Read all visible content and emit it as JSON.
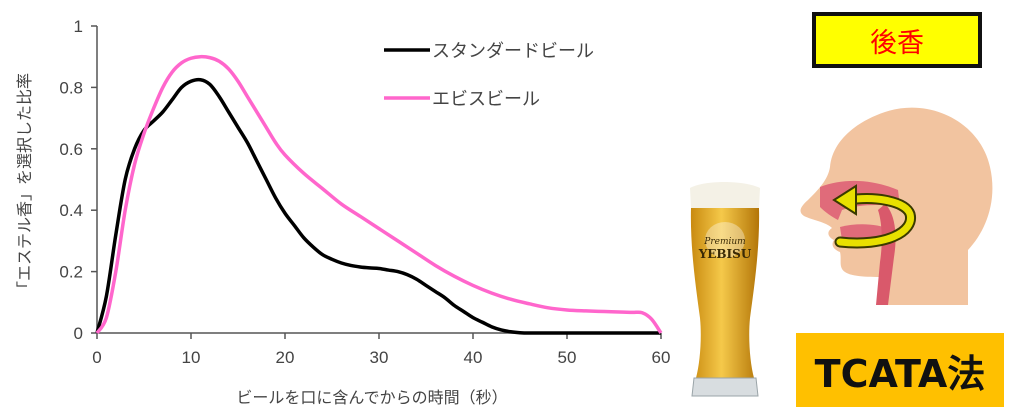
{
  "chart_data": {
    "type": "line",
    "xlabel": "ビールを口に含んでからの時間（秒）",
    "ylabel": "「エステル香」を選択した比率",
    "xlim": [
      0,
      60
    ],
    "ylim": [
      0,
      1
    ],
    "x_ticks": [
      "0",
      "10",
      "20",
      "30",
      "40",
      "50",
      "60"
    ],
    "y_ticks": [
      "0",
      "0.2",
      "0.4",
      "0.6",
      "0.8",
      "1"
    ],
    "legend_position": "top-right",
    "series": [
      {
        "name": "スタンダードビール",
        "color": "#000000",
        "x": [
          0,
          1,
          2,
          3,
          4,
          5,
          6,
          7,
          8,
          9,
          10,
          11,
          12,
          13,
          14,
          15,
          16,
          17,
          18,
          19,
          20,
          21,
          22,
          23,
          24,
          25,
          26,
          27,
          28,
          29,
          30,
          31,
          32,
          33,
          34,
          35,
          36,
          37,
          38,
          39,
          40,
          41,
          42,
          43,
          44,
          45,
          46,
          48,
          50,
          55,
          60
        ],
        "y": [
          0,
          0.12,
          0.32,
          0.5,
          0.6,
          0.66,
          0.69,
          0.72,
          0.76,
          0.8,
          0.82,
          0.825,
          0.81,
          0.77,
          0.72,
          0.67,
          0.62,
          0.56,
          0.5,
          0.44,
          0.39,
          0.35,
          0.31,
          0.28,
          0.255,
          0.24,
          0.228,
          0.22,
          0.215,
          0.212,
          0.21,
          0.205,
          0.2,
          0.19,
          0.175,
          0.155,
          0.135,
          0.115,
          0.09,
          0.07,
          0.05,
          0.035,
          0.02,
          0.01,
          0.004,
          0.001,
          0,
          0,
          0,
          0,
          0
        ]
      },
      {
        "name": "エビスビール",
        "color": "#ff66cc",
        "x": [
          0,
          1,
          2,
          3,
          4,
          5,
          6,
          7,
          8,
          9,
          10,
          11,
          12,
          13,
          14,
          15,
          16,
          17,
          18,
          19,
          20,
          22,
          24,
          26,
          28,
          30,
          32,
          34,
          36,
          38,
          40,
          42,
          44,
          46,
          48,
          50,
          52,
          54,
          56,
          57,
          58,
          59,
          60
        ],
        "y": [
          0,
          0.05,
          0.2,
          0.4,
          0.55,
          0.65,
          0.73,
          0.8,
          0.85,
          0.88,
          0.895,
          0.9,
          0.897,
          0.885,
          0.86,
          0.82,
          0.77,
          0.72,
          0.67,
          0.62,
          0.58,
          0.52,
          0.47,
          0.42,
          0.38,
          0.34,
          0.3,
          0.26,
          0.22,
          0.185,
          0.155,
          0.13,
          0.11,
          0.095,
          0.082,
          0.075,
          0.072,
          0.07,
          0.068,
          0.067,
          0.066,
          0.045,
          0
        ]
      }
    ]
  },
  "side_panel": {
    "aroma_label": "後香",
    "method_label": "TCATA法",
    "glass_brand": "YEBISU",
    "glass_script": "Premium"
  }
}
